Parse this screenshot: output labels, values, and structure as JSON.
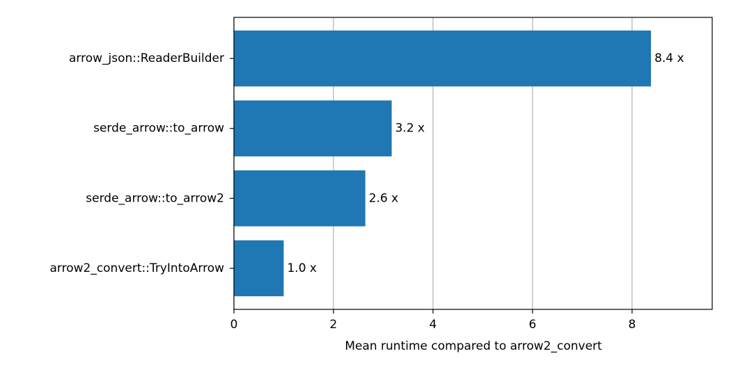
{
  "chart_data": {
    "type": "bar",
    "orientation": "horizontal",
    "x_label": "Mean runtime compared to arrow2_convert",
    "categories": [
      "arrow_json::ReaderBuilder",
      "serde_arrow::to_arrow",
      "serde_arrow::to_arrow2",
      "arrow2_convert::TryIntoArrow"
    ],
    "values": [
      8.38,
      3.17,
      2.64,
      1.0
    ],
    "value_labels": [
      "8.4 x",
      "3.2 x",
      "2.6 x",
      "1.0 x"
    ],
    "color": "#1f77b4",
    "xlim": [
      0,
      9.61
    ],
    "xticks": [
      0,
      2,
      4,
      6,
      8
    ],
    "grid": true
  }
}
